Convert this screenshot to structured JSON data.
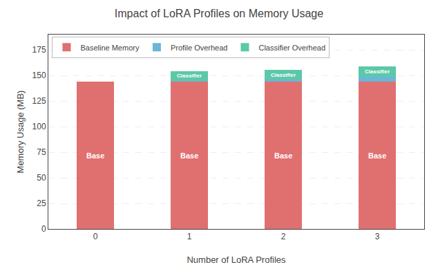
{
  "chart_data": {
    "type": "bar",
    "title": "Impact of LoRA Profiles on Memory Usage",
    "xlabel": "Number of LoRA Profiles",
    "ylabel": "Memory Usage (MB)",
    "categories": [
      0,
      1,
      2,
      3
    ],
    "series": [
      {
        "name": "Baseline Memory",
        "color": "#E07070",
        "values": [
          144,
          144,
          144,
          144
        ]
      },
      {
        "name": "Profile Overhead",
        "color": "#6BB5D6",
        "values": [
          0,
          1.0,
          2.0,
          5.0
        ]
      },
      {
        "name": "Classifier Overhead",
        "color": "#5CC8A8",
        "values": [
          0,
          9.0,
          9.5,
          10.0
        ]
      }
    ],
    "stacked": true,
    "ylim": [
      0,
      190
    ],
    "yticks": [
      0,
      25,
      50,
      75,
      100,
      125,
      150,
      175
    ],
    "grid": true,
    "legend": "upper left",
    "annotations": [
      {
        "text": "Base",
        "series": "Baseline Memory"
      },
      {
        "text": "Classifier",
        "series": "Classifier Overhead"
      }
    ]
  }
}
